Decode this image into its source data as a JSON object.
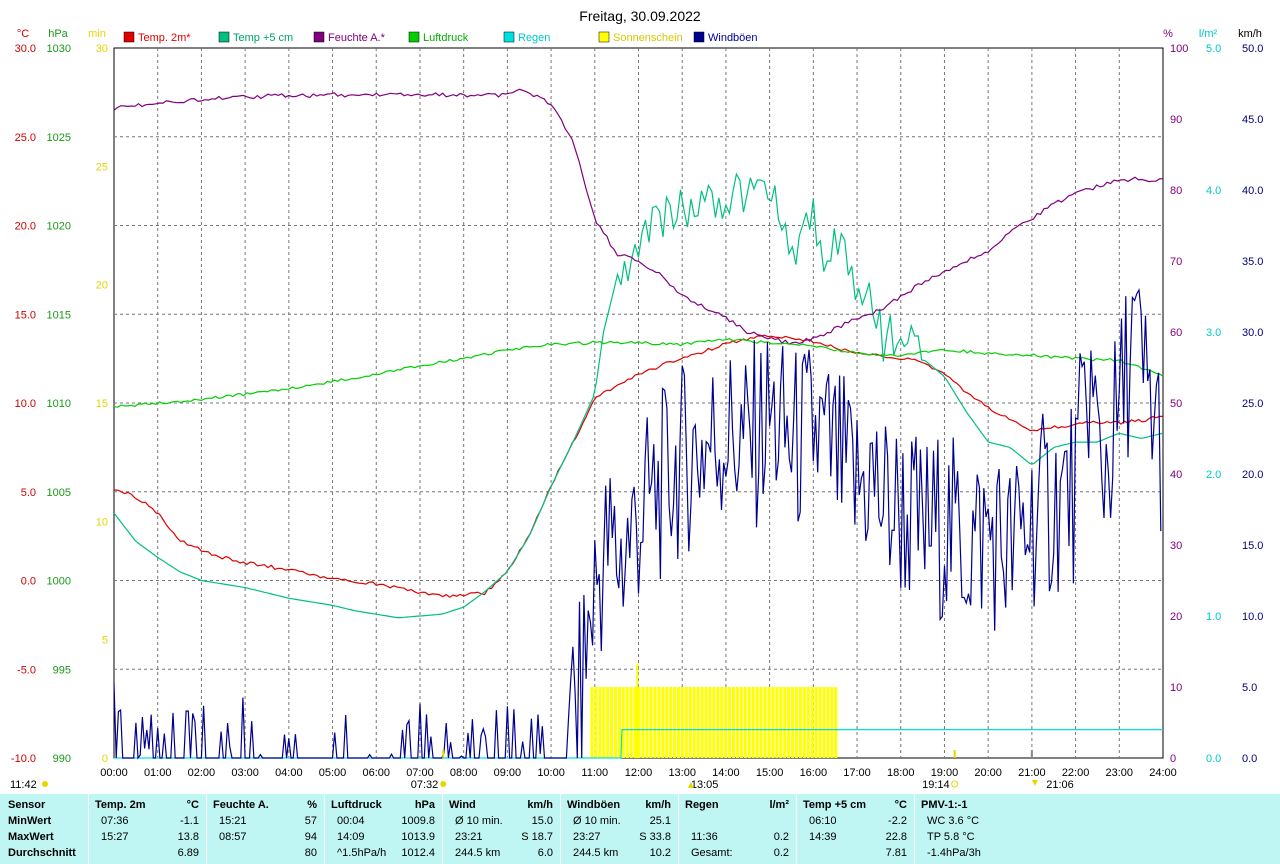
{
  "chart_data": {
    "type": "line",
    "title": "Freitag, 30.09.2022",
    "x_range_hours": [
      0,
      24
    ],
    "x_tick_labels": [
      "00:00",
      "01:00",
      "02:00",
      "03:00",
      "04:00",
      "05:00",
      "06:00",
      "07:00",
      "08:00",
      "09:00",
      "10:00",
      "11:00",
      "12:00",
      "13:00",
      "14:00",
      "15:00",
      "16:00",
      "17:00",
      "18:00",
      "19:00",
      "20:00",
      "21:00",
      "22:00",
      "23:00",
      "24:00"
    ],
    "axes": {
      "temp": {
        "unit": "°C",
        "range": [
          -10,
          30
        ],
        "color": "#d20000",
        "ticks": [
          "30.0",
          "25.0",
          "20.0",
          "15.0",
          "10.0",
          "5.0",
          "0.0",
          "-5.0",
          "-10.0"
        ]
      },
      "pressure": {
        "unit": "hPa",
        "range": [
          990,
          1030
        ],
        "color": "#1a9a1a",
        "ticks": [
          "1030",
          "1025",
          "1020",
          "1015",
          "1010",
          "1005",
          "1000",
          "995",
          "990"
        ]
      },
      "sun_minutes": {
        "unit": "min",
        "range": [
          0,
          30
        ],
        "color": "#e6d600",
        "ticks": [
          "30",
          "25",
          "20",
          "15",
          "10",
          "5",
          "0"
        ]
      },
      "humidity": {
        "unit": "%",
        "range": [
          0,
          100
        ],
        "color": "#800080",
        "ticks": [
          "100",
          "90",
          "80",
          "70",
          "60",
          "50",
          "40",
          "30",
          "20",
          "10",
          "0"
        ]
      },
      "rain": {
        "unit": "l/m²",
        "range": [
          0,
          5
        ],
        "color": "#00c8c8",
        "ticks": [
          "5.0",
          "4.0",
          "3.0",
          "2.0",
          "1.0",
          "0.0"
        ]
      },
      "wind": {
        "unit": "km/h",
        "range": [
          0,
          50
        ],
        "color": "#00007a",
        "ticks": [
          "50.0",
          "45.0",
          "40.0",
          "35.0",
          "30.0",
          "25.0",
          "20.0",
          "15.0",
          "10.0",
          "5.0",
          "0.0"
        ]
      }
    },
    "legend": [
      {
        "name": "Temp. 2m*",
        "color": "#e00000"
      },
      {
        "name": "Temp +5 cm",
        "color": "#00c080"
      },
      {
        "name": "Feuchte A.*",
        "color": "#800080"
      },
      {
        "name": "Luftdruck",
        "color": "#00d000"
      },
      {
        "name": "Regen",
        "color": "#00e0e0"
      },
      {
        "name": "Sonnenschein",
        "color": "#ffff00"
      },
      {
        "name": "Windböen",
        "color": "#000090"
      }
    ],
    "markers": {
      "sunrise": "07:32",
      "sunset": "19:14",
      "time_now": "11:42",
      "max_temp_label": "13:05",
      "moon_label": "21:06"
    },
    "series": [
      {
        "name": "Temp. 2m*",
        "axis": "temp",
        "color": "#e00000",
        "x": [
          0,
          0.5,
          1,
          1.5,
          2,
          2.5,
          3,
          3.5,
          4,
          4.5,
          5,
          5.5,
          6,
          6.5,
          7,
          7.5,
          8,
          8.5,
          9,
          9.5,
          10,
          10.5,
          11,
          11.5,
          12,
          12.5,
          13,
          13.5,
          14,
          14.5,
          15,
          15.5,
          16,
          16.5,
          17,
          17.5,
          18,
          18.5,
          19,
          19.5,
          20,
          20.5,
          21,
          21.5,
          22,
          22.5,
          23,
          23.5,
          24
        ],
        "y": [
          5.2,
          4.7,
          3.8,
          2.3,
          1.7,
          1.3,
          1.0,
          0.8,
          0.6,
          0.3,
          0.1,
          -0.1,
          -0.2,
          -0.4,
          -0.7,
          -0.9,
          -0.8,
          -0.7,
          0.5,
          2.5,
          5.3,
          7.8,
          10.2,
          11.0,
          11.6,
          12.1,
          12.5,
          12.9,
          13.3,
          13.6,
          13.8,
          13.7,
          13.5,
          13.1,
          12.8,
          12.7,
          12.5,
          12.3,
          11.6,
          10.6,
          9.7,
          9.1,
          8.4,
          8.6,
          8.8,
          8.9,
          8.9,
          9.0,
          9.3
        ]
      },
      {
        "name": "Temp +5 cm",
        "axis": "temp",
        "color": "#00c080",
        "x": [
          0,
          0.5,
          1,
          1.5,
          2,
          2.5,
          3,
          3.5,
          4,
          4.5,
          5,
          5.5,
          6,
          6.5,
          7,
          7.5,
          8,
          8.5,
          9,
          9.5,
          10,
          10.5,
          11,
          11.2,
          11.5,
          12,
          12.5,
          13,
          13.5,
          14,
          14.5,
          15,
          15.3,
          15.6,
          16,
          16.3,
          16.6,
          17,
          17.3,
          17.6,
          18,
          18.5,
          19,
          19.5,
          20,
          20.5,
          21,
          21.5,
          22,
          22.5,
          23,
          23.5,
          24
        ],
        "y": [
          3.8,
          2.2,
          1.3,
          0.5,
          0.0,
          -0.2,
          -0.4,
          -0.7,
          -1.0,
          -1.2,
          -1.4,
          -1.7,
          -1.9,
          -2.1,
          -2.0,
          -1.9,
          -1.5,
          -0.6,
          0.5,
          2.5,
          5.3,
          7.8,
          10.5,
          14.0,
          17.0,
          18.5,
          20.5,
          21.0,
          21.3,
          21.5,
          21.8,
          22.0,
          20.5,
          18.0,
          21.0,
          17.0,
          20.0,
          15.5,
          16.5,
          13.5,
          14.0,
          12.5,
          11.5,
          9.5,
          7.8,
          7.5,
          6.5,
          7.5,
          7.8,
          7.8,
          8.3,
          8.0,
          8.3
        ]
      },
      {
        "name": "Feuchte A.*",
        "axis": "humidity",
        "color": "#800080",
        "x": [
          0,
          0.5,
          1,
          1.5,
          2,
          2.5,
          3,
          3.5,
          4,
          4.5,
          5,
          5.5,
          6,
          6.5,
          7,
          7.5,
          8,
          8.5,
          9,
          9.2,
          9.5,
          10,
          10.5,
          11,
          11.5,
          12,
          12.5,
          13,
          13.5,
          14,
          14.5,
          15,
          15.5,
          16,
          16.5,
          17,
          17.5,
          18,
          18.5,
          19,
          19.5,
          20,
          20.5,
          21,
          21.5,
          22,
          22.5,
          23,
          23.5,
          24
        ],
        "y": [
          91.5,
          91.8,
          92.3,
          92.5,
          92.8,
          92.9,
          93.1,
          93.2,
          93.3,
          93.3,
          93.4,
          93.4,
          93.4,
          93.4,
          93.4,
          93.4,
          93.4,
          93.4,
          93.4,
          94.0,
          93.8,
          92.0,
          87.0,
          76.0,
          71.0,
          70.0,
          68.0,
          65.0,
          63.5,
          62.0,
          60.0,
          59.0,
          58.5,
          59.0,
          60.5,
          62.0,
          63.0,
          65.0,
          67.0,
          68.5,
          70.0,
          71.5,
          74.0,
          76.0,
          78.0,
          79.5,
          80.5,
          81.5,
          81.5,
          81.3
        ]
      },
      {
        "name": "Luftdruck",
        "axis": "pressure",
        "color": "#00d000",
        "x": [
          0,
          1,
          2,
          3,
          4,
          5,
          6,
          7,
          8,
          9,
          10,
          11,
          12,
          13,
          14,
          15,
          16,
          17,
          18,
          19,
          20,
          21,
          22,
          23,
          24
        ],
        "y": [
          1009.8,
          1010.0,
          1010.2,
          1010.5,
          1010.8,
          1011.2,
          1011.6,
          1012.1,
          1012.5,
          1013.0,
          1013.3,
          1013.4,
          1013.4,
          1013.3,
          1013.6,
          1013.4,
          1013.2,
          1012.8,
          1012.7,
          1013.0,
          1012.8,
          1012.7,
          1012.5,
          1012.4,
          1011.5
        ]
      },
      {
        "name": "Regen",
        "axis": "rain",
        "color": "#00e0e0",
        "x": [
          0,
          11.6,
          11.62,
          24
        ],
        "y": [
          0,
          0,
          0.2,
          0.2
        ]
      },
      {
        "name": "Windböen",
        "axis": "wind",
        "color": "#000090",
        "x": [
          0,
          0.2,
          0.5,
          1,
          1.5,
          2,
          2.5,
          3,
          3.5,
          4,
          4.5,
          5,
          5.5,
          6,
          6.5,
          7,
          7.5,
          8,
          8.5,
          9,
          9.5,
          10,
          10.3,
          10.6,
          11,
          11.3,
          11.6,
          12,
          12.5,
          13,
          13.5,
          14,
          14.5,
          15,
          15.5,
          16,
          16.5,
          17,
          17.3,
          17.6,
          18,
          18.5,
          19,
          19.5,
          20,
          20.5,
          21,
          21.5,
          22,
          22.3,
          22.6,
          23,
          23.3,
          23.6,
          24
        ],
        "y": [
          5.0,
          2.0,
          0,
          2.5,
          0,
          3.0,
          0,
          3.0,
          0,
          2.5,
          0,
          2.0,
          0,
          2.0,
          0,
          2.0,
          0,
          2.5,
          0,
          2.0,
          0,
          4.0,
          5.0,
          3.0,
          12.0,
          15.0,
          14.0,
          17.0,
          19.0,
          21.0,
          22.0,
          23.0,
          22.0,
          24.0,
          22.0,
          23.0,
          21.0,
          19.0,
          20.0,
          18.0,
          17.5,
          16.0,
          16.5,
          15.0,
          16.0,
          14.5,
          17.0,
          18.0,
          19.0,
          27.0,
          20.0,
          24.0,
          30.0,
          26.0,
          22.0
        ]
      },
      {
        "name": "Sonnenschein",
        "axis": "sun_minutes",
        "color": "#ffff00",
        "x": [
          10.9,
          11.5,
          11.9,
          12.5,
          13,
          13.5,
          14,
          14.5,
          15,
          15.5,
          16,
          16.2,
          16.5
        ],
        "y": [
          3.0,
          3.0,
          3.0,
          3.0,
          3.0,
          3.0,
          3.0,
          3.0,
          3.0,
          3.0,
          3.0,
          3.0,
          3.0
        ]
      }
    ]
  },
  "table": {
    "columns": [
      {
        "header": "Sensor",
        "unit": "",
        "rows": [
          "MinWert",
          "MaxWert",
          "Durchschnitt"
        ]
      },
      {
        "header": "Temp. 2m",
        "unit": "°C",
        "times": [
          "07:36",
          "15:27",
          ""
        ],
        "values": [
          "-1.1",
          "13.8",
          "6.89"
        ]
      },
      {
        "header": "Feuchte A.",
        "unit": "%",
        "times": [
          "15:21",
          "08:57",
          ""
        ],
        "values": [
          "57",
          "94",
          "80"
        ]
      },
      {
        "header": "Luftdruck",
        "unit": "hPa",
        "times": [
          "00:04",
          "14:09",
          "^1.5hPa/h"
        ],
        "values": [
          "1009.8",
          "1013.9",
          "1012.4"
        ]
      },
      {
        "header": "Wind",
        "unit": "km/h",
        "times": [
          "Ø 10 min.",
          "23:21",
          "244.5 km"
        ],
        "values": [
          "15.0",
          "S 18.7",
          "6.0"
        ]
      },
      {
        "header": "Windböen",
        "unit": "km/h",
        "times": [
          "Ø 10 min.",
          "23:27",
          "244.5 km"
        ],
        "values": [
          "25.1",
          "S 33.8",
          "10.2"
        ]
      },
      {
        "header": "Regen",
        "unit": "l/m²",
        "times": [
          "",
          "11:36",
          "Gesamt:"
        ],
        "values": [
          "",
          "0.2",
          "0.2"
        ]
      },
      {
        "header": "Temp +5 cm",
        "unit": "°C",
        "times": [
          "06:10",
          "14:39",
          ""
        ],
        "values": [
          "-2.2",
          "22.8",
          "7.81"
        ]
      },
      {
        "header": "PMV-1:-1",
        "unit": "",
        "times": [
          "WC 3.6 °C",
          "TP 5.8 °C",
          "-1.4hPa/3h"
        ],
        "values": [
          "",
          "",
          ""
        ]
      }
    ]
  }
}
